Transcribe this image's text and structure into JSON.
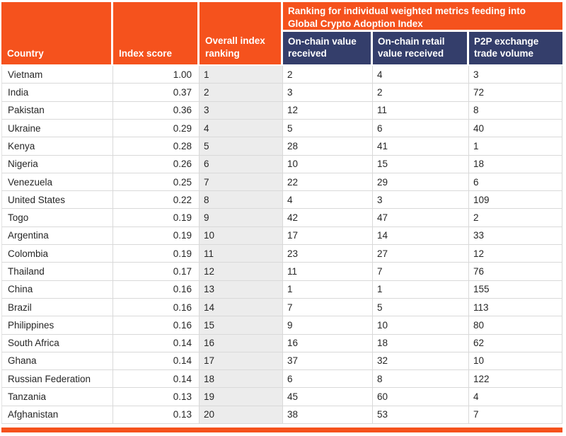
{
  "chart_data": {
    "type": "table",
    "banner": "Ranking for individual weighted metrics feeding into Global Crypto Adoption Index",
    "columns": [
      "Country",
      "Index score",
      "Overall index ranking",
      "On-chain value received",
      "On-chain retail value received",
      "P2P exchange trade volume"
    ],
    "rows": [
      {
        "country": "Vietnam",
        "index_score": "1.00",
        "overall_ranking": "1",
        "on_chain_value": "2",
        "on_chain_retail_value": "4",
        "p2p_volume": "3"
      },
      {
        "country": "India",
        "index_score": "0.37",
        "overall_ranking": "2",
        "on_chain_value": "3",
        "on_chain_retail_value": "2",
        "p2p_volume": "72"
      },
      {
        "country": "Pakistan",
        "index_score": "0.36",
        "overall_ranking": "3",
        "on_chain_value": "12",
        "on_chain_retail_value": "11",
        "p2p_volume": "8"
      },
      {
        "country": "Ukraine",
        "index_score": "0.29",
        "overall_ranking": "4",
        "on_chain_value": "5",
        "on_chain_retail_value": "6",
        "p2p_volume": "40"
      },
      {
        "country": "Kenya",
        "index_score": "0.28",
        "overall_ranking": "5",
        "on_chain_value": "28",
        "on_chain_retail_value": "41",
        "p2p_volume": "1"
      },
      {
        "country": "Nigeria",
        "index_score": "0.26",
        "overall_ranking": "6",
        "on_chain_value": "10",
        "on_chain_retail_value": "15",
        "p2p_volume": "18"
      },
      {
        "country": "Venezuela",
        "index_score": "0.25",
        "overall_ranking": "7",
        "on_chain_value": "22",
        "on_chain_retail_value": "29",
        "p2p_volume": "6"
      },
      {
        "country": "United States",
        "index_score": "0.22",
        "overall_ranking": "8",
        "on_chain_value": "4",
        "on_chain_retail_value": "3",
        "p2p_volume": "109"
      },
      {
        "country": "Togo",
        "index_score": "0.19",
        "overall_ranking": "9",
        "on_chain_value": "42",
        "on_chain_retail_value": "47",
        "p2p_volume": "2"
      },
      {
        "country": "Argentina",
        "index_score": "0.19",
        "overall_ranking": "10",
        "on_chain_value": "17",
        "on_chain_retail_value": "14",
        "p2p_volume": "33"
      },
      {
        "country": "Colombia",
        "index_score": "0.19",
        "overall_ranking": "11",
        "on_chain_value": "23",
        "on_chain_retail_value": "27",
        "p2p_volume": "12"
      },
      {
        "country": "Thailand",
        "index_score": "0.17",
        "overall_ranking": "12",
        "on_chain_value": "11",
        "on_chain_retail_value": "7",
        "p2p_volume": "76"
      },
      {
        "country": "China",
        "index_score": "0.16",
        "overall_ranking": "13",
        "on_chain_value": "1",
        "on_chain_retail_value": "1",
        "p2p_volume": "155"
      },
      {
        "country": "Brazil",
        "index_score": "0.16",
        "overall_ranking": "14",
        "on_chain_value": "7",
        "on_chain_retail_value": "5",
        "p2p_volume": "113"
      },
      {
        "country": "Philippines",
        "index_score": "0.16",
        "overall_ranking": "15",
        "on_chain_value": "9",
        "on_chain_retail_value": "10",
        "p2p_volume": "80"
      },
      {
        "country": "South Africa",
        "index_score": "0.14",
        "overall_ranking": "16",
        "on_chain_value": "16",
        "on_chain_retail_value": "18",
        "p2p_volume": "62"
      },
      {
        "country": "Ghana",
        "index_score": "0.14",
        "overall_ranking": "17",
        "on_chain_value": "37",
        "on_chain_retail_value": "32",
        "p2p_volume": "10"
      },
      {
        "country": "Russian Federation",
        "index_score": "0.14",
        "overall_ranking": "18",
        "on_chain_value": "6",
        "on_chain_retail_value": "8",
        "p2p_volume": "122"
      },
      {
        "country": "Tanzania",
        "index_score": "0.13",
        "overall_ranking": "19",
        "on_chain_value": "45",
        "on_chain_retail_value": "60",
        "p2p_volume": "4"
      },
      {
        "country": "Afghanistan",
        "index_score": "0.13",
        "overall_ranking": "20",
        "on_chain_value": "38",
        "on_chain_retail_value": "53",
        "p2p_volume": "7"
      }
    ]
  },
  "colors": {
    "header_orange": "#F5521D",
    "header_navy": "#343E6B",
    "rank_column_bg": "#ECECEC",
    "grid_line": "#D9D9D9",
    "header_text": "#FFFFFF",
    "body_text": "#262626"
  }
}
